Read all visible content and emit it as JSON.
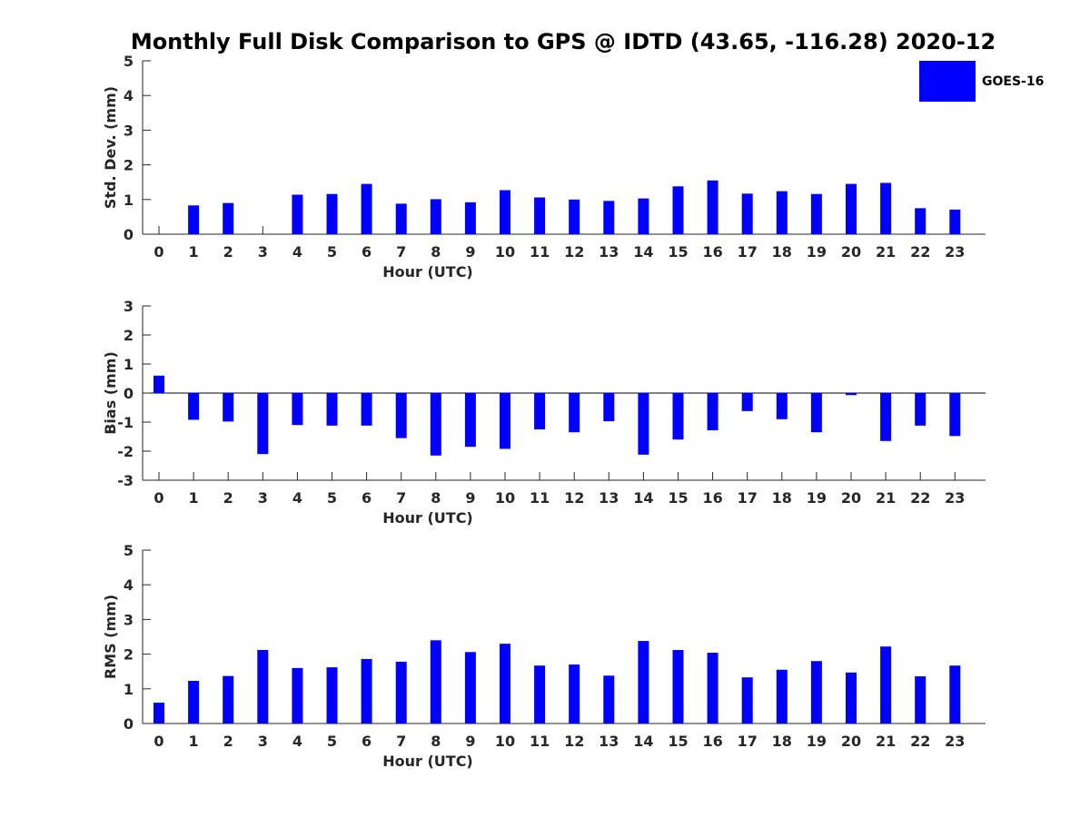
{
  "figure": {
    "title": "Monthly Full Disk Comparison to GPS @ IDTD (43.65, -116.28) 2020-12",
    "legend": {
      "label": "GOES-16",
      "color": "#0000ff",
      "placement": "top-right"
    }
  },
  "chart_data": [
    {
      "type": "bar",
      "categories": [
        "0",
        "1",
        "2",
        "3",
        "4",
        "5",
        "6",
        "7",
        "8",
        "9",
        "10",
        "11",
        "12",
        "13",
        "14",
        "15",
        "16",
        "17",
        "18",
        "19",
        "20",
        "21",
        "22",
        "23"
      ],
      "series": [
        {
          "name": "GOES-16",
          "color": "#0000ff",
          "values": [
            0.0,
            0.83,
            0.9,
            0.0,
            1.14,
            1.16,
            1.45,
            0.88,
            1.01,
            0.92,
            1.27,
            1.06,
            1.0,
            0.96,
            1.03,
            1.38,
            1.55,
            1.17,
            1.24,
            1.16,
            1.45,
            1.48,
            0.75,
            0.71
          ]
        }
      ],
      "xlabel": "Hour (UTC)",
      "ylabel": "Std. Dev. (mm)",
      "ylim": [
        0,
        5
      ],
      "yticks": [
        "0",
        "1",
        "2",
        "3",
        "4",
        "5"
      ],
      "grid": false
    },
    {
      "type": "bar",
      "categories": [
        "0",
        "1",
        "2",
        "3",
        "4",
        "5",
        "6",
        "7",
        "8",
        "9",
        "10",
        "11",
        "12",
        "13",
        "14",
        "15",
        "16",
        "17",
        "18",
        "19",
        "20",
        "21",
        "22",
        "23"
      ],
      "series": [
        {
          "name": "GOES-16",
          "color": "#0000ff",
          "values": [
            0.6,
            -0.92,
            -0.98,
            -2.1,
            -1.1,
            -1.12,
            -1.12,
            -1.55,
            -2.15,
            -1.85,
            -1.92,
            -1.25,
            -1.35,
            -0.97,
            -2.12,
            -1.6,
            -1.28,
            -0.62,
            -0.9,
            -1.35,
            -0.07,
            -1.65,
            -1.12,
            -1.48
          ]
        }
      ],
      "xlabel": "Hour (UTC)",
      "ylabel": "Bias (mm)",
      "ylim": [
        -3,
        3
      ],
      "yticks": [
        "-3",
        "-2",
        "-1",
        "0",
        "1",
        "2",
        "3"
      ],
      "grid": false
    },
    {
      "type": "bar",
      "categories": [
        "0",
        "1",
        "2",
        "3",
        "4",
        "5",
        "6",
        "7",
        "8",
        "9",
        "10",
        "11",
        "12",
        "13",
        "14",
        "15",
        "16",
        "17",
        "18",
        "19",
        "20",
        "21",
        "22",
        "23"
      ],
      "series": [
        {
          "name": "GOES-16",
          "color": "#0000ff",
          "values": [
            0.6,
            1.23,
            1.37,
            2.12,
            1.6,
            1.62,
            1.86,
            1.78,
            2.4,
            2.06,
            2.3,
            1.67,
            1.7,
            1.38,
            2.38,
            2.12,
            2.04,
            1.33,
            1.55,
            1.8,
            1.47,
            2.22,
            1.36,
            1.67
          ]
        }
      ],
      "xlabel": "Hour (UTC)",
      "ylabel": "RMS (mm)",
      "ylim": [
        0,
        5
      ],
      "yticks": [
        "0",
        "1",
        "2",
        "3",
        "4",
        "5"
      ],
      "grid": false
    }
  ]
}
